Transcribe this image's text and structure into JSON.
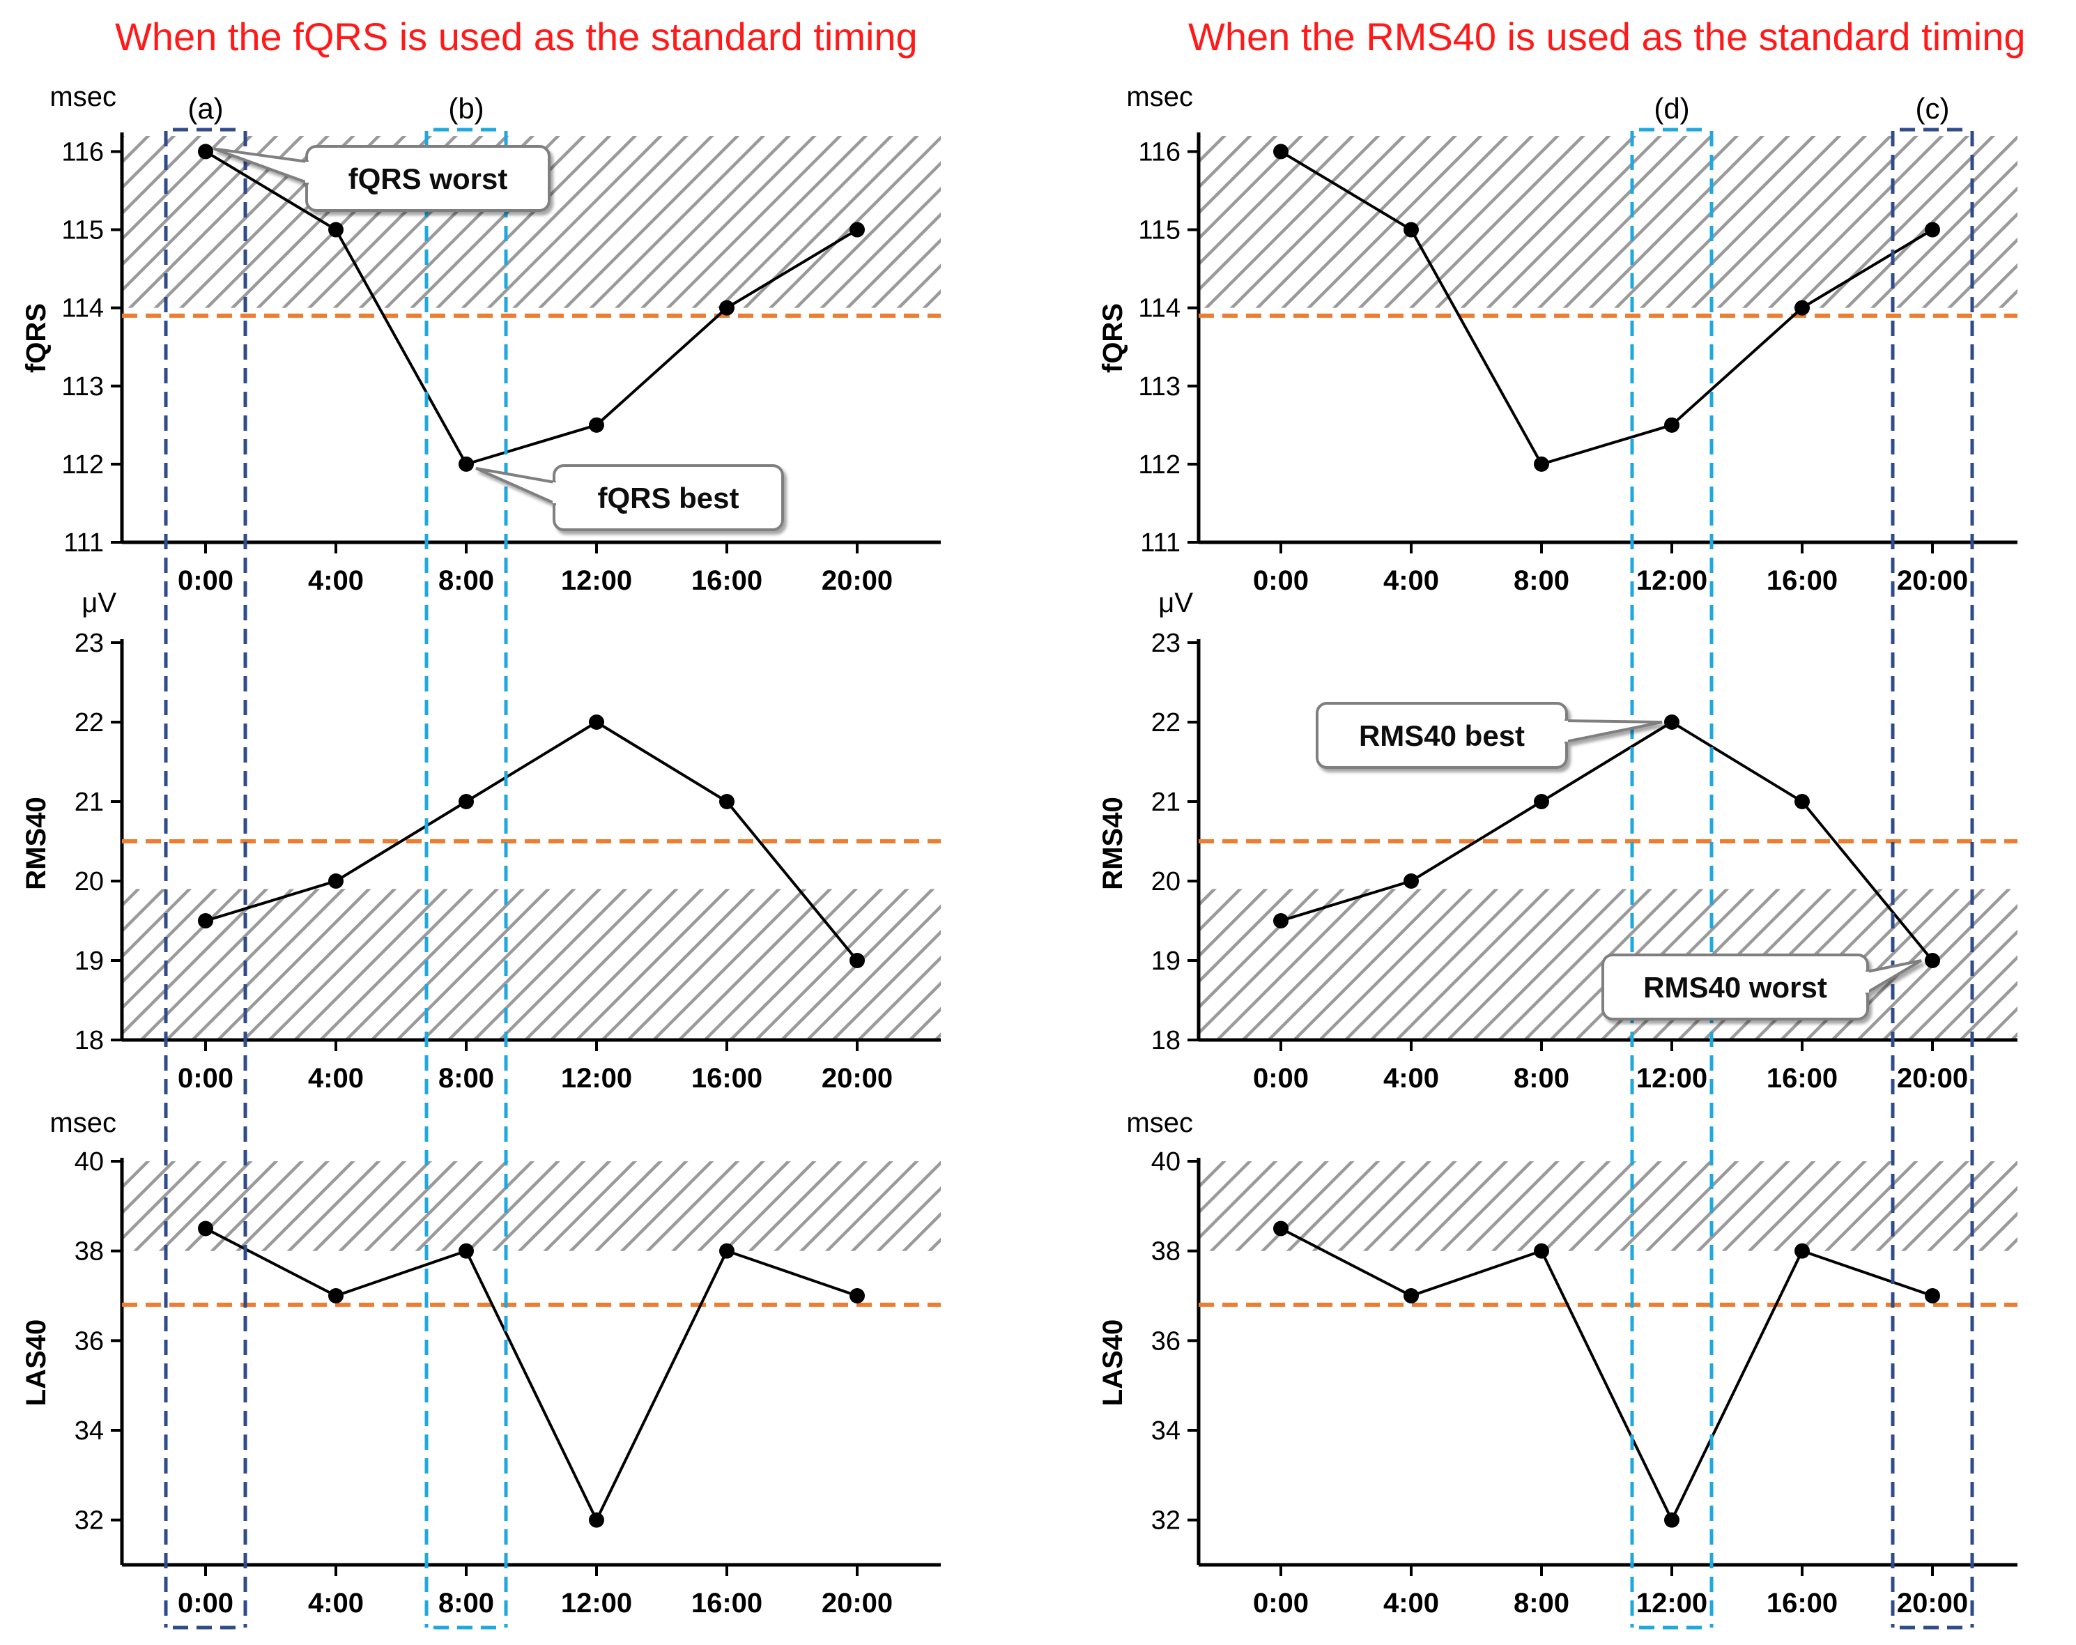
{
  "panels": [
    {
      "title": "When the fQRS is used as the standard timing",
      "charts": [
        {
          "unit": "msec",
          "ylabel": "fQRS",
          "yticks": [
            "111",
            "112",
            "113",
            "114",
            "115",
            "116"
          ]
        },
        {
          "unit": "μV",
          "ylabel": "RMS40",
          "yticks": [
            "18",
            "19",
            "20",
            "21",
            "22",
            "23"
          ]
        },
        {
          "unit": "msec",
          "ylabel": "LAS40",
          "yticks": [
            "32",
            "34",
            "36",
            "38",
            "40"
          ]
        }
      ],
      "boxes": [
        {
          "label": "(a)",
          "time": "0:00",
          "style": "dark"
        },
        {
          "label": "(b)",
          "time": "8:00",
          "style": "light"
        }
      ],
      "annotations": [
        {
          "text": "fQRS worst"
        },
        {
          "text": "fQRS best"
        }
      ]
    },
    {
      "title": "When the RMS40 is used as the standard timing",
      "charts": [
        {
          "unit": "msec",
          "ylabel": "fQRS",
          "yticks": [
            "111",
            "112",
            "113",
            "114",
            "115",
            "116"
          ]
        },
        {
          "unit": "μV",
          "ylabel": "RMS40",
          "yticks": [
            "18",
            "19",
            "20",
            "21",
            "22",
            "23"
          ]
        },
        {
          "unit": "msec",
          "ylabel": "LAS40",
          "yticks": [
            "32",
            "34",
            "36",
            "38",
            "40"
          ]
        }
      ],
      "boxes": [
        {
          "label": "(d)",
          "time": "12:00",
          "style": "light"
        },
        {
          "label": "(c)",
          "time": "20:00",
          "style": "dark"
        }
      ],
      "annotations": [
        {
          "text": "RMS40 best"
        },
        {
          "text": "RMS40 worst"
        }
      ]
    }
  ],
  "colors": {
    "line": "#000000",
    "threshold": "#ed7d31",
    "box_dark": "#2f4b8a",
    "box_light": "#1fa8e0",
    "hatch": "#9a9a9a",
    "title": "#ff1a1a"
  },
  "chart_data": [
    {
      "type": "line",
      "panel": "left",
      "title": "fQRS",
      "xlabel": "",
      "ylabel": "fQRS (msec)",
      "categories": [
        "0:00",
        "4:00",
        "8:00",
        "12:00",
        "16:00",
        "20:00"
      ],
      "values": [
        116,
        115,
        112,
        112.5,
        114,
        115
      ],
      "ylim": [
        111,
        116.2
      ],
      "threshold": 113.9,
      "shaded_range": [
        114,
        116.2
      ]
    },
    {
      "type": "line",
      "panel": "left",
      "title": "RMS40",
      "xlabel": "",
      "ylabel": "RMS40 (μV)",
      "categories": [
        "0:00",
        "4:00",
        "8:00",
        "12:00",
        "16:00",
        "20:00"
      ],
      "values": [
        19.5,
        20,
        21,
        22,
        21,
        19
      ],
      "ylim": [
        18,
        23
      ],
      "threshold": 20.5,
      "shaded_range": [
        18,
        19.9
      ]
    },
    {
      "type": "line",
      "panel": "left",
      "title": "LAS40",
      "xlabel": "",
      "ylabel": "LAS40 (msec)",
      "categories": [
        "0:00",
        "4:00",
        "8:00",
        "12:00",
        "16:00",
        "20:00"
      ],
      "values": [
        38.5,
        37,
        38,
        32,
        38,
        37
      ],
      "ylim": [
        31,
        40
      ],
      "threshold": 36.8,
      "shaded_range": [
        38,
        40
      ]
    },
    {
      "type": "line",
      "panel": "right",
      "title": "fQRS",
      "xlabel": "",
      "ylabel": "fQRS (msec)",
      "categories": [
        "0:00",
        "4:00",
        "8:00",
        "12:00",
        "16:00",
        "20:00"
      ],
      "values": [
        116,
        115,
        112,
        112.5,
        114,
        115
      ],
      "ylim": [
        111,
        116.2
      ],
      "threshold": 113.9,
      "shaded_range": [
        114,
        116.2
      ]
    },
    {
      "type": "line",
      "panel": "right",
      "title": "RMS40",
      "xlabel": "",
      "ylabel": "RMS40 (μV)",
      "categories": [
        "0:00",
        "4:00",
        "8:00",
        "12:00",
        "16:00",
        "20:00"
      ],
      "values": [
        19.5,
        20,
        21,
        22,
        21,
        19
      ],
      "ylim": [
        18,
        23
      ],
      "threshold": 20.5,
      "shaded_range": [
        18,
        19.9
      ]
    },
    {
      "type": "line",
      "panel": "right",
      "title": "LAS40",
      "xlabel": "",
      "ylabel": "LAS40 (msec)",
      "categories": [
        "0:00",
        "4:00",
        "8:00",
        "12:00",
        "16:00",
        "20:00"
      ],
      "values": [
        38.5,
        37,
        38,
        32,
        38,
        37
      ],
      "ylim": [
        31,
        40
      ],
      "threshold": 36.8,
      "shaded_range": [
        38,
        40
      ]
    }
  ]
}
